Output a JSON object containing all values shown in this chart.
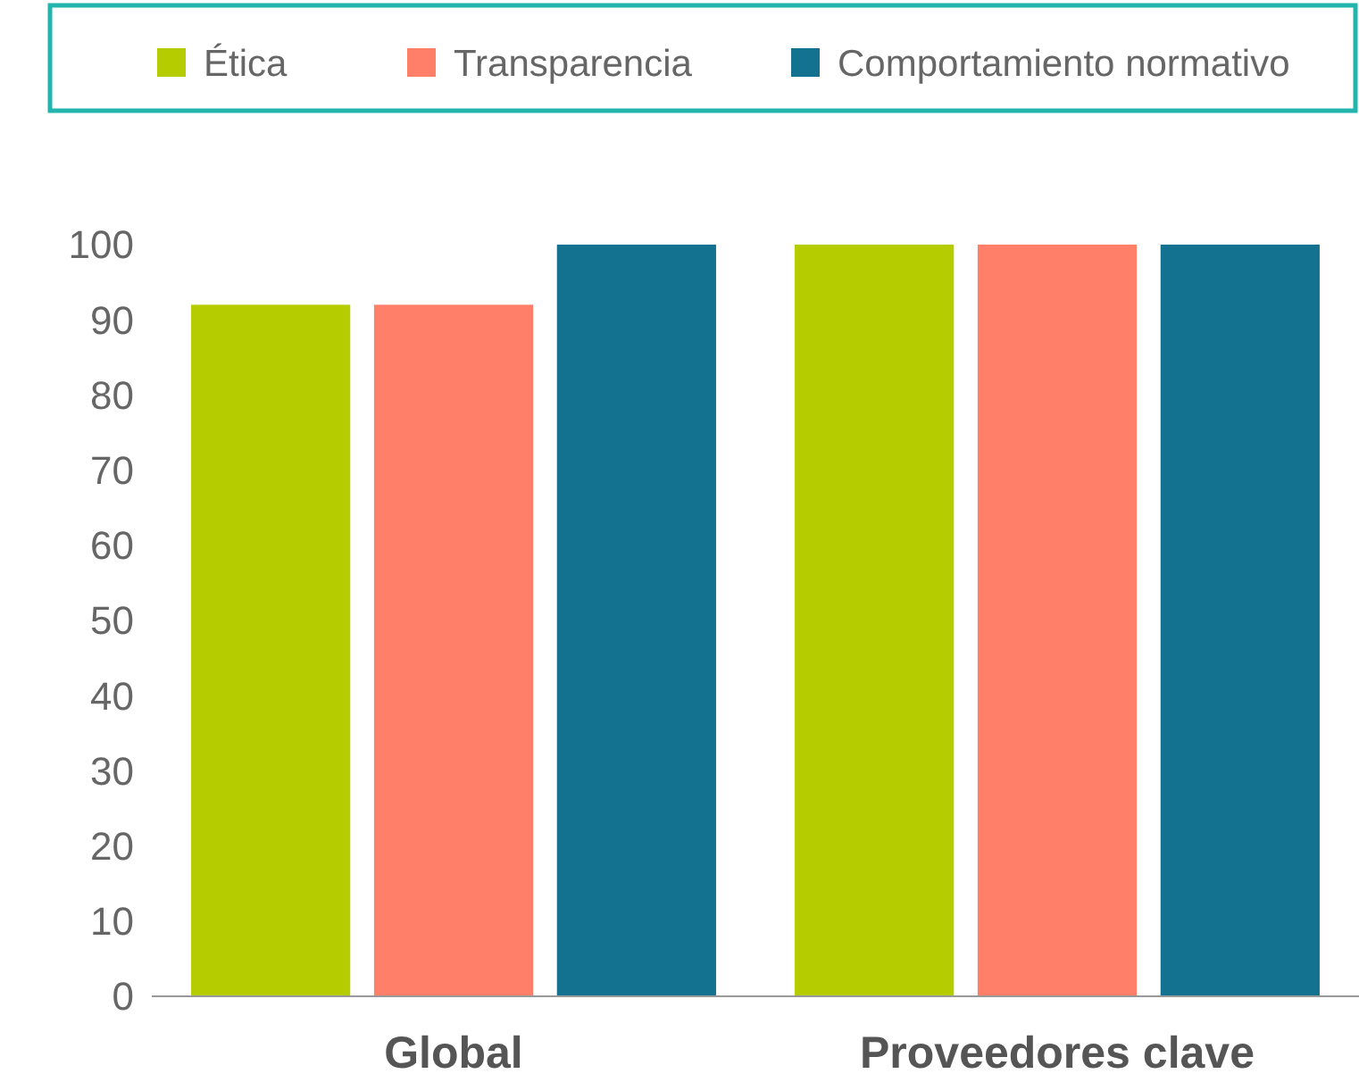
{
  "chart_data": {
    "type": "bar",
    "categories": [
      "Global",
      "Proveedores clave"
    ],
    "series": [
      {
        "name": "Ética",
        "color": "#b5cc00",
        "values": [
          92,
          100
        ]
      },
      {
        "name": "Transparencia",
        "color": "#ff7f69",
        "values": [
          92,
          100
        ]
      },
      {
        "name": "Comportamiento normativo",
        "color": "#127290",
        "values": [
          100,
          100
        ]
      }
    ],
    "ylim": [
      0,
      100
    ],
    "yticks": [
      0,
      10,
      20,
      30,
      40,
      50,
      60,
      70,
      80,
      90,
      100
    ],
    "grid": false,
    "legend": "top"
  }
}
